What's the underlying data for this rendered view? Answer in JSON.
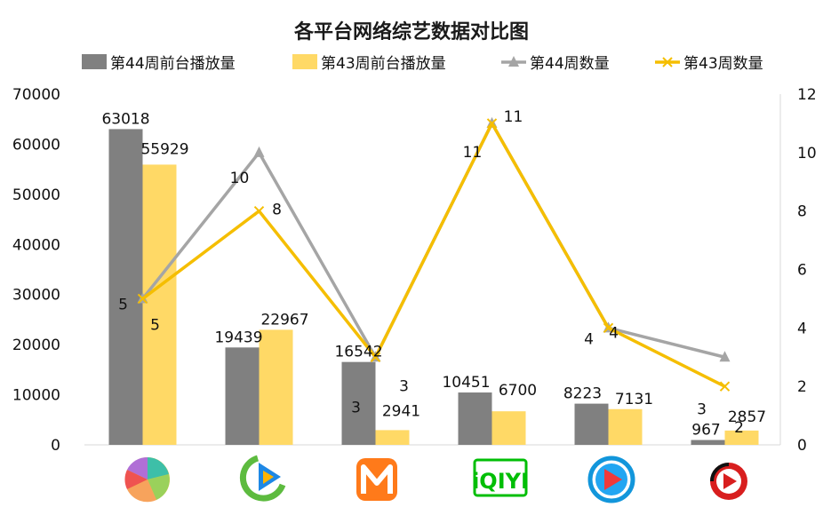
{
  "chart_data": {
    "type": "bar",
    "title": "各平台网络综艺数据对比图",
    "categories": [
      "platform-1",
      "platform-2",
      "platform-3",
      "platform-4",
      "platform-5",
      "platform-6"
    ],
    "category_icons": [
      "pie-multicolor-icon",
      "play-circle-green-blue-icon",
      "mango-m-orange-icon",
      "iqiyi-green-logo-icon",
      "play-circle-blue-red-icon",
      "play-circle-red-black-icon"
    ],
    "series": [
      {
        "name": "第44周前台播放量",
        "type": "bar",
        "axis": "left",
        "color": "#808080",
        "values": [
          63018,
          19439,
          16542,
          10451,
          8223,
          967
        ]
      },
      {
        "name": "第43周前台播放量",
        "type": "bar",
        "axis": "left",
        "color": "#FFD966",
        "values": [
          55929,
          22967,
          2941,
          6700,
          7131,
          2857
        ]
      },
      {
        "name": "第44周数量",
        "type": "line",
        "axis": "right",
        "color": "#A5A5A5",
        "marker": "triangle",
        "values": [
          5,
          10,
          3,
          11,
          4,
          3
        ]
      },
      {
        "name": "第43周数量",
        "type": "line",
        "axis": "right",
        "color": "#F5BE00",
        "marker": "x",
        "values": [
          5,
          8,
          3,
          11,
          4,
          2
        ]
      }
    ],
    "y_left": {
      "min": 0,
      "max": 70000,
      "step": 10000,
      "ticks": [
        "0",
        "10000",
        "20000",
        "30000",
        "40000",
        "50000",
        "60000",
        "70000"
      ]
    },
    "y_right": {
      "min": 0,
      "max": 12,
      "step": 2,
      "ticks": [
        "0",
        "2",
        "4",
        "6",
        "8",
        "10",
        "12"
      ]
    },
    "legend_position": "top",
    "grid": false
  }
}
